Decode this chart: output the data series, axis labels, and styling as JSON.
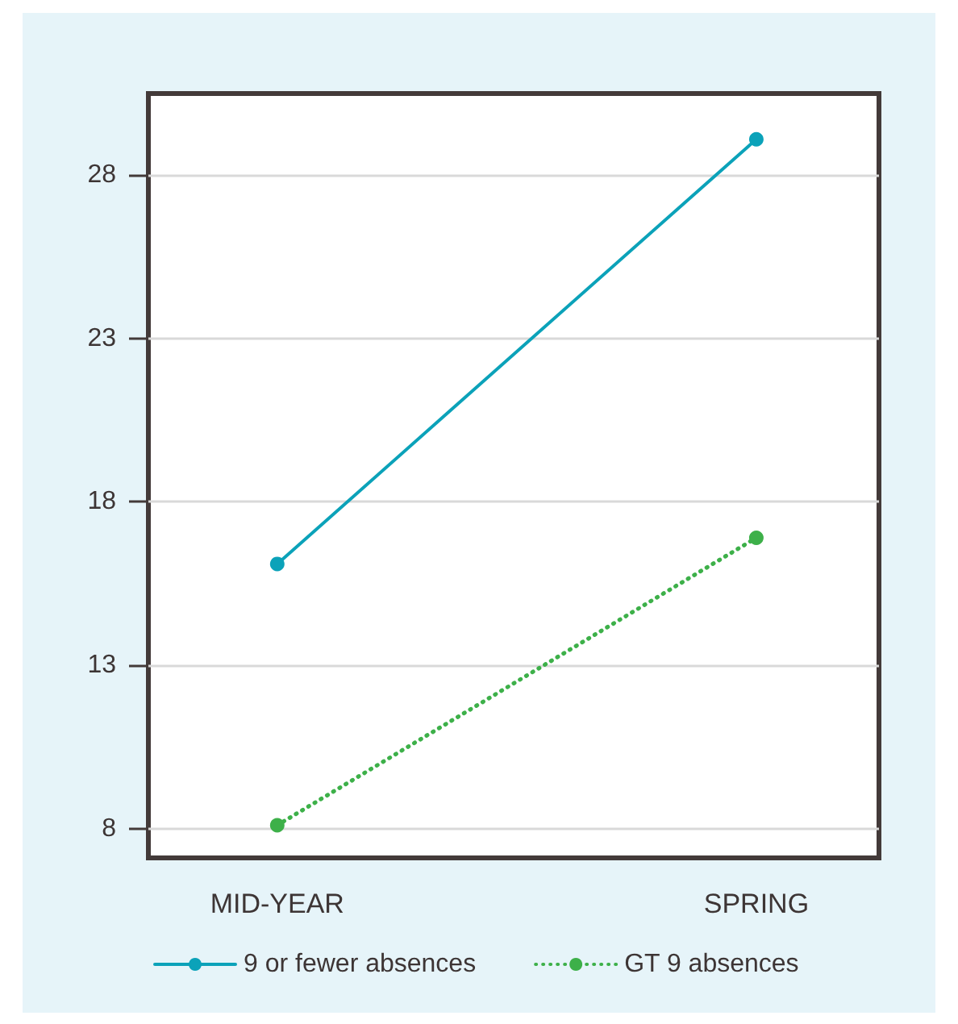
{
  "chart_data": {
    "type": "line",
    "categories": [
      "MID-YEAR",
      "SPRING"
    ],
    "series": [
      {
        "name": "9 or fewer absences",
        "color": "#0ba2b9",
        "values": [
          16.1,
          29.1
        ],
        "line_style": "solid"
      },
      {
        "name": "GT 9 absences",
        "color": "#3db049",
        "values": [
          8.1,
          16.9
        ],
        "line_style": "dotted"
      }
    ],
    "ylim": [
      7.1,
      30.5
    ],
    "yticks": [
      8,
      13,
      18,
      23,
      28
    ],
    "grid": "y",
    "legend": "bottom",
    "marker": "circle"
  }
}
